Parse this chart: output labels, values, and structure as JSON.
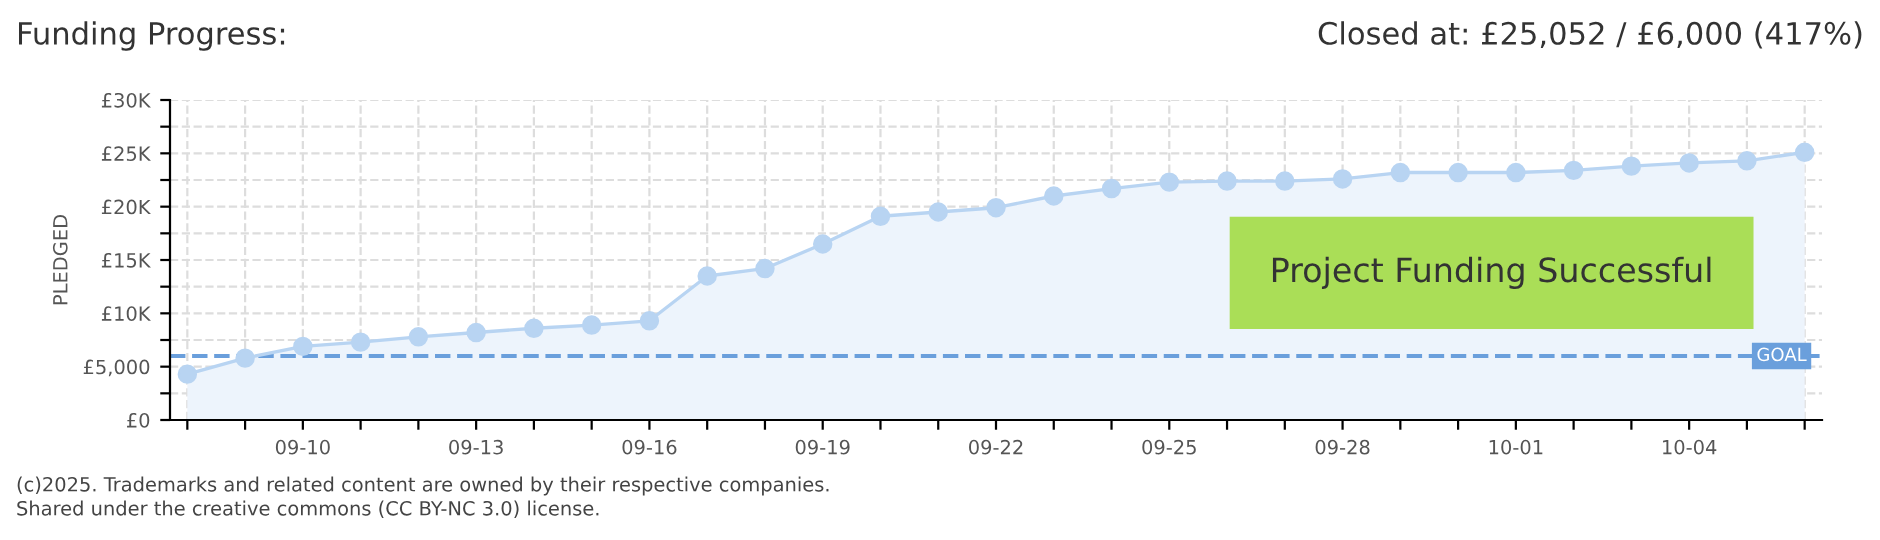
{
  "chart_data": {
    "type": "area",
    "title": "Funding Progress:",
    "subtitle": "Closed at: £25,052 / £6,000 (417%)",
    "ylabel": "PLEDGED",
    "categories": [
      null,
      null,
      "09-10",
      null,
      null,
      "09-13",
      null,
      null,
      "09-16",
      null,
      null,
      "09-19",
      null,
      null,
      "09-22",
      null,
      null,
      "09-25",
      null,
      null,
      "09-28",
      null,
      null,
      "10-01",
      null,
      null,
      "10-04",
      null,
      null
    ],
    "series": [
      {
        "color": "#b8d4f2",
        "values": [
          4300,
          5800,
          6900,
          7300,
          7800,
          8200,
          8600,
          8900,
          9300,
          13500,
          14200,
          16500,
          19100,
          19500,
          19900,
          21000,
          21700,
          22300,
          22400,
          22400,
          22600,
          23200,
          23200,
          23200,
          23400,
          23800,
          24100,
          24300,
          25100
        ]
      }
    ],
    "ylim": [
      0,
      30000
    ],
    "yticks": [
      {
        "value": 0,
        "label": "£0"
      },
      {
        "value": 2500,
        "label": null
      },
      {
        "value": 5000,
        "label": "£5,000"
      },
      {
        "value": 7500,
        "label": null
      },
      {
        "value": 10000,
        "label": "£10K"
      },
      {
        "value": 12500,
        "label": null
      },
      {
        "value": 15000,
        "label": "£15K"
      },
      {
        "value": 17500,
        "label": null
      },
      {
        "value": 20000,
        "label": "£20K"
      },
      {
        "value": 22500,
        "label": null
      },
      {
        "value": 25000,
        "label": "£25K"
      },
      {
        "value": 27500,
        "label": null
      },
      {
        "value": 30000,
        "label": "£30K"
      }
    ],
    "ref_lines": [
      {
        "axis": "y",
        "value": 6000,
        "label": "GOAL",
        "color": "#6a9fdc",
        "line_style": "dashed"
      }
    ],
    "annotations": [
      "Project Funding Successful",
      "(c)2025. Trademarks and related content are owned by their respective companies.",
      "Shared under the creative commons (CC BY-NC 3.0) license."
    ],
    "grid": true,
    "marker": "circle",
    "legend": false
  }
}
